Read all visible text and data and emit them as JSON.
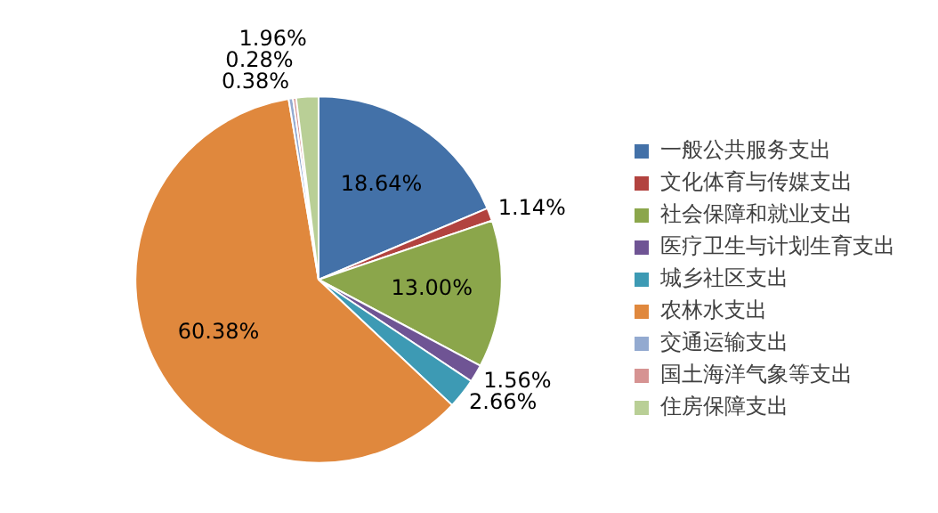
{
  "chart_data": {
    "type": "pie",
    "categories": [
      "一般公共服务支出",
      "文化体育与传媒支出",
      "社会保障和就业支出",
      "医疗卫生与计划生育支出",
      "城乡社区支出",
      "农林水支出",
      "交通运输支出",
      "国土海洋气象等支出",
      "住房保障支出"
    ],
    "values": [
      18.64,
      1.14,
      13.0,
      1.56,
      2.66,
      60.38,
      0.38,
      0.28,
      1.96
    ],
    "value_labels": [
      "18.64%",
      "1.14%",
      "13.00%",
      "1.56%",
      "2.66%",
      "60.38%",
      "0.38%",
      "0.28%",
      "1.96%"
    ],
    "colors": [
      "#4371a8",
      "#b2433f",
      "#8ba64b",
      "#6f5494",
      "#3d9ab4",
      "#e0883d",
      "#93aad0",
      "#d69392",
      "#b9cf96"
    ],
    "legend": "right"
  }
}
